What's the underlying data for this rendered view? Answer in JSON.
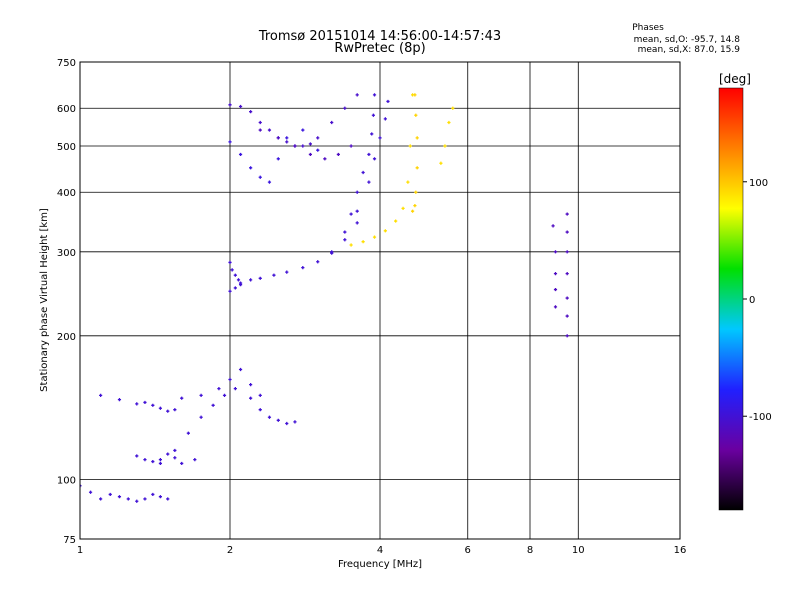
{
  "chart_data": {
    "type": "scatter",
    "title": "Tromsø 20151014 14:56:00-14:57:43",
    "subtitle": "RwPretec (8p)",
    "xlabel": "Frequency [MHz]",
    "ylabel": "Stationary phase Virtual Height [km]",
    "xscale": "log2",
    "yscale": "log",
    "xlim": [
      1,
      16
    ],
    "ylim": [
      75,
      750
    ],
    "x_ticks": [
      1,
      2,
      4,
      6,
      8,
      10,
      16
    ],
    "x_tick_labels": [
      "1",
      "2",
      "4",
      "6",
      "8",
      "10",
      "16"
    ],
    "y_ticks": [
      75,
      100,
      200,
      300,
      400,
      500,
      600,
      750
    ],
    "y_tick_labels": [
      "75",
      "100",
      "200",
      "300",
      "400",
      "500",
      "600",
      "750"
    ],
    "grid": true,
    "stats": {
      "heading": "Phases",
      "line1": "mean, sd,O:  -95.7, 14.8",
      "line2": "mean, sd,X:  87.0, 15.9"
    },
    "colorbar": {
      "unit": "[deg]",
      "range": [
        -180,
        180
      ],
      "ticks": [
        100,
        0,
        -100
      ],
      "tick_labels": [
        "100",
        "0",
        "-100"
      ],
      "colormap": "rainbow",
      "stops": [
        "#000000",
        "#6a00a0",
        "#2020ff",
        "#00c8ff",
        "#00e000",
        "#ffff00",
        "#ff8000",
        "#ff0000"
      ]
    },
    "series": [
      {
        "traces": [
          {
            "x": [
              1.0,
              1.05,
              1.1,
              1.15,
              1.2,
              1.25,
              1.3,
              1.35,
              1.4,
              1.45,
              1.5
            ],
            "y": [
              97,
              94,
              91,
              93,
              92,
              91,
              90,
              91,
              93,
              92,
              91
            ],
            "phase": -100
          },
          {
            "x": [
              1.1,
              1.2,
              1.3,
              1.35,
              1.4,
              1.45,
              1.5,
              1.55
            ],
            "y": [
              150,
              147,
              144,
              145,
              143,
              141,
              139,
              140
            ],
            "phase": -100
          },
          {
            "x": [
              1.3,
              1.35,
              1.4,
              1.45,
              1.5,
              1.55,
              1.6,
              1.7
            ],
            "y": [
              112,
              110,
              109,
              110,
              113,
              111,
              108,
              110
            ],
            "phase": -100
          },
          {
            "x": [
              1.45,
              1.55,
              1.65,
              1.75,
              1.85,
              1.95,
              2.05,
              2.2,
              2.3,
              2.4,
              2.5,
              2.6,
              2.7
            ],
            "y": [
              108,
              115,
              125,
              135,
              143,
              150,
              155,
              148,
              140,
              135,
              133,
              131,
              132
            ],
            "phase": -100
          },
          {
            "x": [
              1.6,
              1.75,
              1.9,
              2.0,
              2.1,
              2.2,
              2.3
            ],
            "y": [
              148,
              150,
              155,
              162,
              170,
              158,
              150
            ],
            "phase": -100
          },
          {
            "x": [
              2.0,
              2.05,
              2.1,
              2.2,
              2.3,
              2.45,
              2.6,
              2.8,
              3.0,
              3.2,
              3.4,
              3.6
            ],
            "y": [
              248,
              252,
              256,
              262,
              264,
              268,
              272,
              278,
              286,
              298,
              318,
              345
            ],
            "phase": -100
          },
          {
            "x": [
              2.0,
              2.02,
              2.05,
              2.08,
              2.1
            ],
            "y": [
              285,
              275,
              268,
              262,
              258
            ],
            "phase": -100
          },
          {
            "x": [
              3.5,
              3.6,
              3.7,
              3.8,
              3.85,
              3.88,
              3.9
            ],
            "y": [
              360,
              400,
              440,
              480,
              530,
              580,
              640
            ],
            "phase": -100
          },
          {
            "x": [
              3.2,
              3.4,
              3.6,
              3.8,
              3.9,
              4.0,
              4.1,
              4.15
            ],
            "y": [
              300,
              330,
              365,
              420,
              470,
              520,
              570,
              620
            ],
            "phase": -100
          },
          {
            "x": [
              3.5,
              3.7,
              3.9,
              4.1,
              4.3,
              4.45,
              4.55,
              4.6,
              4.65
            ],
            "y": [
              310,
              315,
              322,
              332,
              348,
              370,
              420,
              500,
              640
            ],
            "phase": 90
          },
          {
            "x": [
              4.65,
              4.7,
              4.72,
              4.75,
              4.75,
              4.72,
              4.7
            ],
            "y": [
              365,
              375,
              400,
              450,
              520,
              580,
              640
            ],
            "phase": 95
          },
          {
            "x": [
              2.0,
              2.1,
              2.2,
              2.3,
              2.4,
              2.5,
              2.6,
              2.7,
              2.8,
              2.9,
              3.0,
              3.2,
              3.4,
              3.6
            ],
            "y": [
              610,
              605,
              590,
              560,
              540,
              520,
              510,
              500,
              500,
              505,
              520,
              560,
              600,
              640
            ],
            "phase": -105
          },
          {
            "x": [
              2.0,
              2.1,
              2.2,
              2.3,
              2.4,
              2.5,
              2.6,
              2.8,
              3.0
            ],
            "y": [
              510,
              480,
              450,
              430,
              420,
              470,
              520,
              540,
              490
            ],
            "phase": -95
          },
          {
            "x": [
              2.3,
              2.5,
              2.7,
              2.9,
              3.1,
              3.3,
              3.5
            ],
            "y": [
              540,
              520,
              500,
              480,
              470,
              480,
              500
            ],
            "phase": -110
          },
          {
            "x": [
              5.3,
              5.4,
              5.5,
              5.6
            ],
            "y": [
              460,
              500,
              560,
              600
            ],
            "phase": 90
          },
          {
            "x": [
              9.5,
              9.5,
              9.5,
              9.5,
              9.5,
              9.5,
              9.5
            ],
            "y": [
              360,
              330,
              300,
              270,
              240,
              220,
              200
            ],
            "phase": -110
          },
          {
            "x": [
              8.9,
              9.0,
              9.0,
              9.0,
              9.0
            ],
            "y": [
              340,
              300,
              270,
              250,
              230
            ],
            "phase": -110
          }
        ]
      }
    ]
  }
}
